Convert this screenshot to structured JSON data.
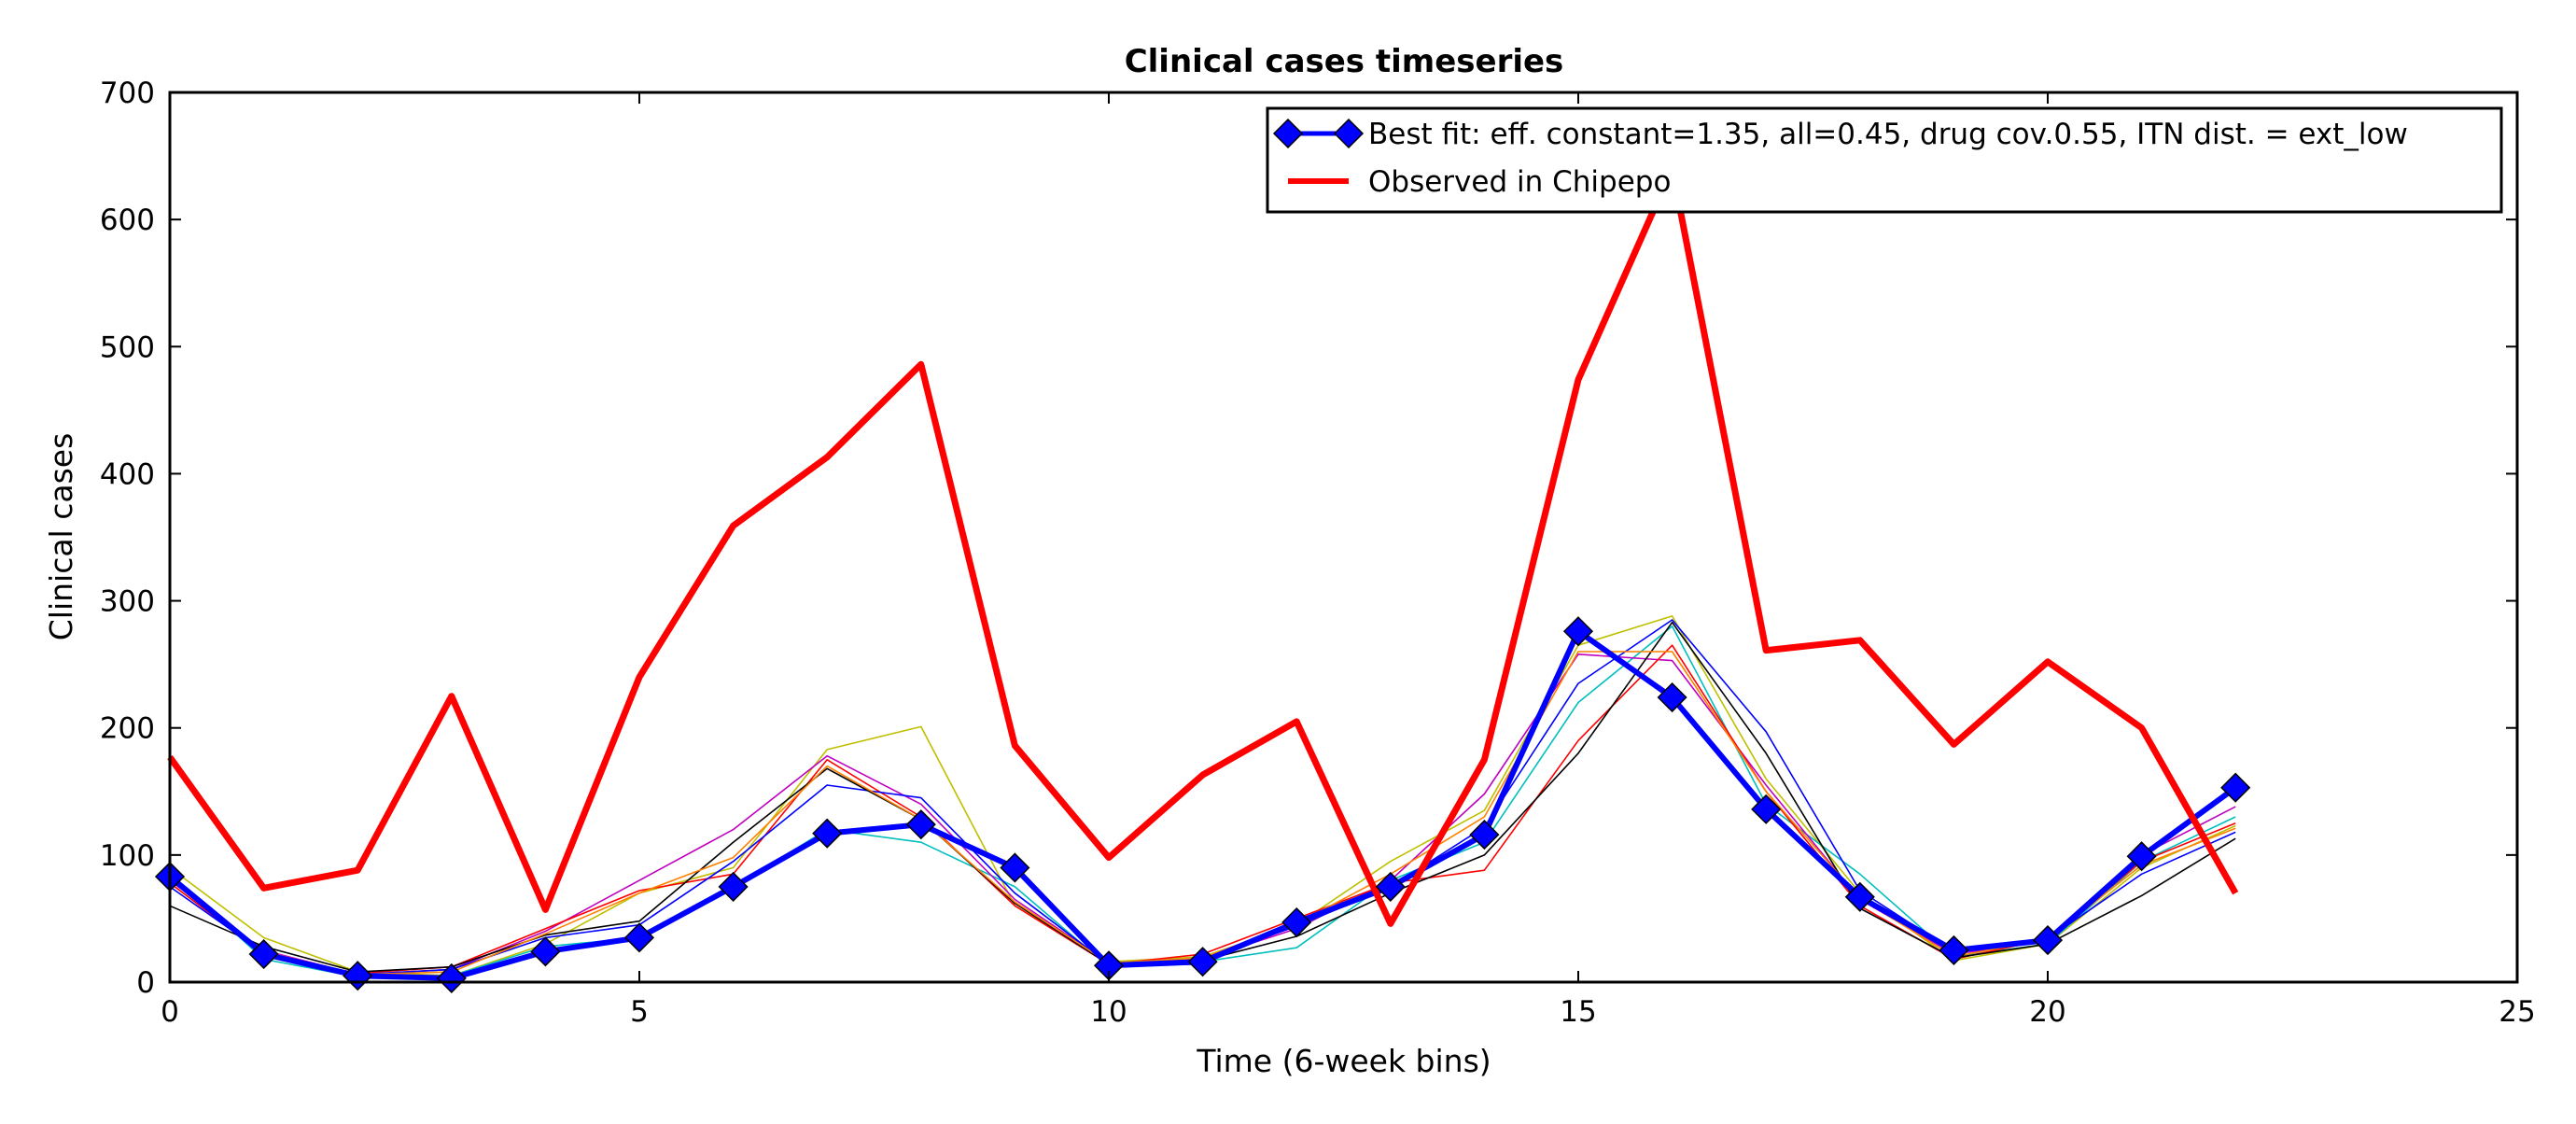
{
  "chart_data": {
    "type": "line",
    "title": "Clinical cases timeseries",
    "xlabel": "Time (6-week bins)",
    "ylabel": "Clinical cases",
    "xlim": [
      0,
      25
    ],
    "ylim": [
      0,
      700
    ],
    "xticks": [
      "0",
      "5",
      "10",
      "15",
      "20",
      "25"
    ],
    "yticks": [
      "0",
      "100",
      "200",
      "300",
      "400",
      "500",
      "600",
      "700"
    ],
    "xtick_values": [
      0,
      5,
      10,
      15,
      20,
      25
    ],
    "ytick_values": [
      0,
      100,
      200,
      300,
      400,
      500,
      600,
      700
    ],
    "grid": false,
    "legend_position": "top-right",
    "x": [
      0,
      1,
      2,
      3,
      4,
      5,
      6,
      7,
      8,
      9,
      10,
      11,
      12,
      13,
      14,
      15,
      16,
      17,
      18,
      19,
      20,
      21,
      22
    ],
    "series": [
      {
        "name": "Best fit: eff. constant=1.35, all=0.45, drug cov.0.55, ITN dist. = ext_low",
        "role": "best-fit",
        "color": "#0000ff",
        "marker": "diamond",
        "values": [
          83,
          22,
          5,
          3,
          24,
          35,
          75,
          117,
          124,
          90,
          13,
          16,
          47,
          75,
          116,
          276,
          224,
          136,
          67,
          25,
          33,
          99,
          153
        ]
      },
      {
        "name": "Observed in Chipepo",
        "role": "observed",
        "color": "#ff0000",
        "values": [
          177,
          74,
          88,
          225,
          57,
          240,
          359,
          413,
          486,
          186,
          98,
          163,
          205,
          46,
          175,
          474,
          640,
          261,
          269,
          187,
          252,
          200,
          70
        ]
      },
      {
        "role": "simulation",
        "color": "#bfbf00",
        "values": [
          90,
          35,
          8,
          5,
          30,
          70,
          90,
          183,
          201,
          60,
          16,
          20,
          45,
          95,
          135,
          265,
          288,
          160,
          70,
          17,
          30,
          90,
          123
        ]
      },
      {
        "role": "simulation",
        "color": "#00bfbf",
        "values": [
          85,
          18,
          4,
          5,
          28,
          35,
          75,
          120,
          110,
          75,
          12,
          16,
          27,
          80,
          110,
          220,
          280,
          140,
          85,
          20,
          30,
          95,
          130
        ]
      },
      {
        "role": "simulation",
        "color": "#bf00bf",
        "values": [
          80,
          25,
          6,
          10,
          40,
          80,
          120,
          178,
          140,
          65,
          15,
          18,
          42,
          80,
          148,
          258,
          253,
          155,
          65,
          22,
          32,
          100,
          138
        ]
      },
      {
        "role": "simulation",
        "color": "#ff0000",
        "values": [
          78,
          22,
          7,
          12,
          42,
          72,
          85,
          175,
          130,
          60,
          14,
          22,
          50,
          78,
          88,
          190,
          265,
          150,
          60,
          18,
          34,
          95,
          125
        ]
      },
      {
        "role": "simulation",
        "color": "#0000ff",
        "values": [
          75,
          23,
          6,
          10,
          35,
          45,
          95,
          155,
          145,
          70,
          14,
          18,
          44,
          75,
          122,
          235,
          285,
          197,
          72,
          24,
          34,
          85,
          118
        ]
      },
      {
        "role": "simulation",
        "color": "#000000",
        "values": [
          60,
          28,
          8,
          12,
          37,
          48,
          110,
          168,
          128,
          62,
          14,
          17,
          36,
          70,
          100,
          180,
          283,
          180,
          58,
          19,
          30,
          68,
          113
        ]
      },
      {
        "role": "simulation",
        "color": "#ff8000",
        "values": [
          82,
          24,
          6,
          8,
          38,
          70,
          98,
          170,
          128,
          63,
          15,
          19,
          46,
          85,
          130,
          260,
          260,
          150,
          66,
          20,
          34,
          92,
          121
        ]
      }
    ]
  }
}
